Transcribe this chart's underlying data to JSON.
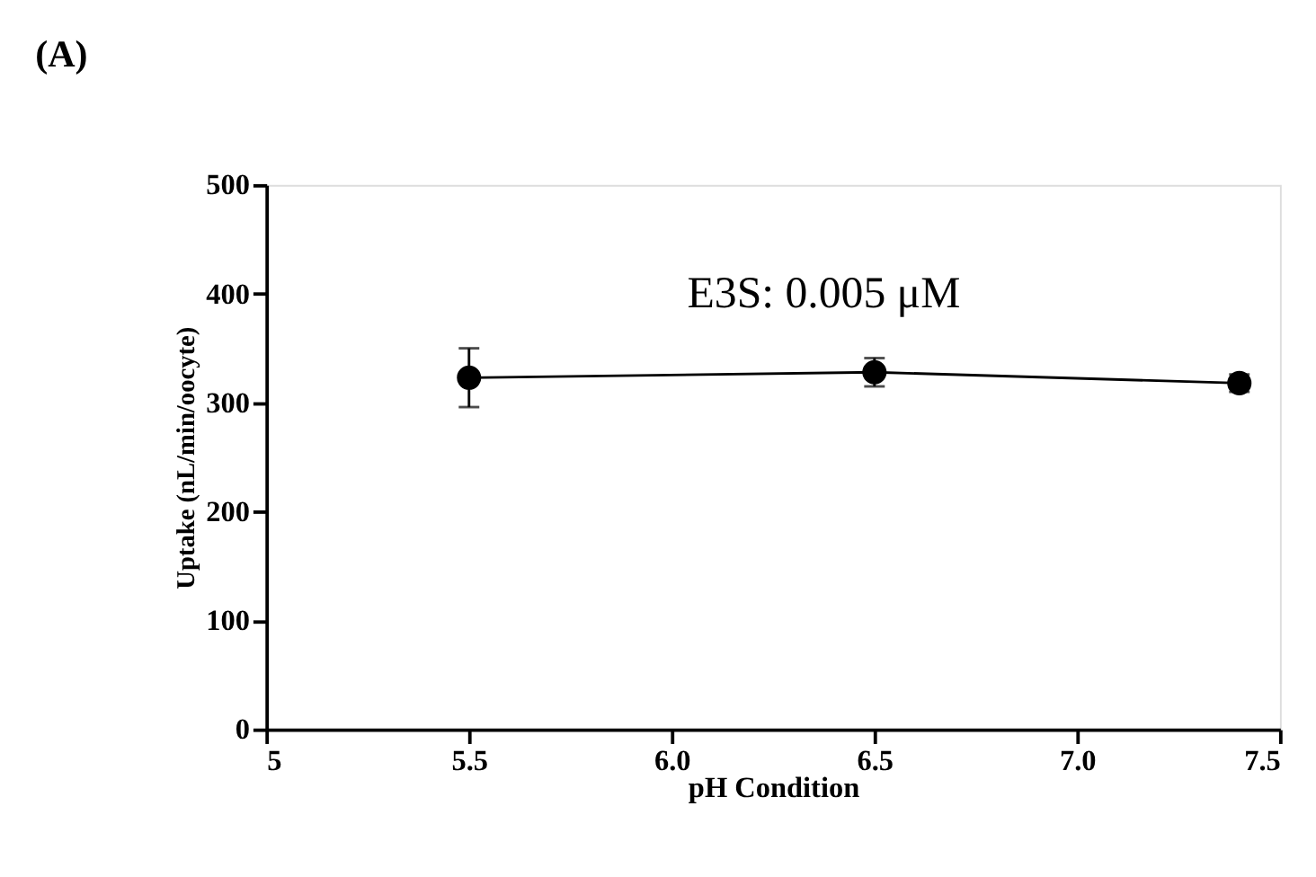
{
  "chart_data": {
    "type": "line",
    "title": "(A)",
    "xlabel": "pH Condition",
    "ylabel": "Uptake (nL/min/oocyte)",
    "x": [
      5.5,
      6.5,
      7.4
    ],
    "series": [
      {
        "color": "#000000",
        "values": [
          323,
          328,
          318
        ],
        "errors": [
          27,
          13,
          8
        ]
      }
    ],
    "xlim": [
      5,
      7.5
    ],
    "xticks": [
      5,
      {
        "value": 5.5,
        "label": "5.5"
      },
      {
        "value": 6.0,
        "label": "6.0"
      },
      {
        "value": 6.5,
        "label": "6.5"
      },
      {
        "value": 7.0,
        "label": "7.0"
      },
      {
        "value": 7.5,
        "label": "7.5"
      }
    ],
    "ylim": [
      0,
      500
    ],
    "yticks": [
      0,
      100,
      200,
      300,
      400,
      500
    ],
    "marker": "circle",
    "line_style": "solid",
    "grid": false,
    "annotations": [
      "E3S: 0.005 μM"
    ]
  }
}
